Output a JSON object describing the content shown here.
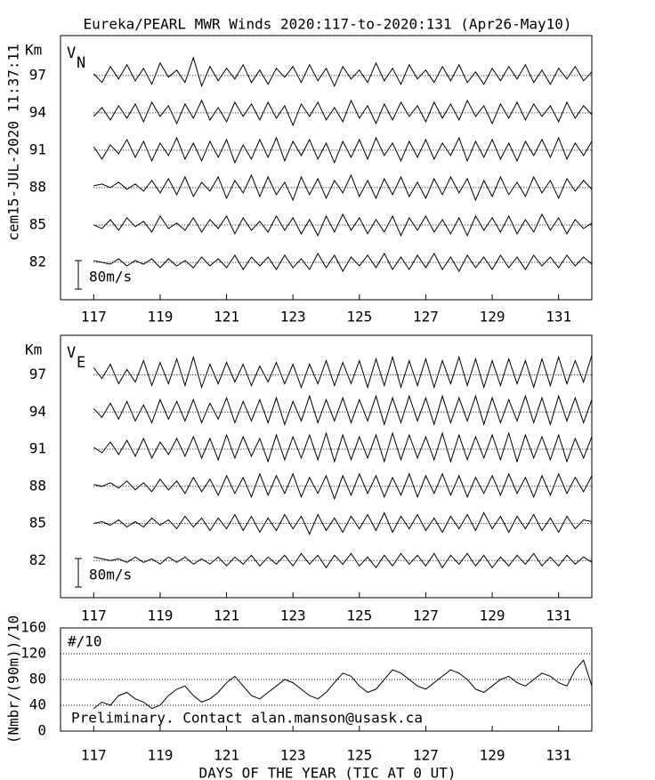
{
  "title": "Eureka/PEARL MWR Winds 2020:117-to-2020:131 (Apr26-May10)",
  "stamp": "cem15-JUL-2020 11:37:11",
  "chart_data": [
    {
      "type": "ridgeline",
      "label": {
        "main": "V",
        "sub": "N"
      },
      "y_unit": "Km",
      "x": [
        117,
        117.25,
        117.5,
        117.75,
        118,
        118.25,
        118.5,
        118.75,
        119,
        119.25,
        119.5,
        119.75,
        120,
        120.25,
        120.5,
        120.75,
        121,
        121.25,
        121.5,
        121.75,
        122,
        122.25,
        122.5,
        122.75,
        123,
        123.25,
        123.5,
        123.75,
        124,
        124.25,
        124.5,
        124.75,
        125,
        125.25,
        125.5,
        125.75,
        126,
        126.25,
        126.5,
        126.75,
        127,
        127.25,
        127.5,
        127.75,
        128,
        128.25,
        128.5,
        128.75,
        129,
        129.25,
        129.5,
        129.75,
        130,
        130.25,
        130.5,
        130.75,
        131,
        131.25,
        131.5,
        131.75,
        132
      ],
      "xlim": [
        116,
        132
      ],
      "xticks": [
        117,
        119,
        121,
        123,
        125,
        127,
        129,
        131
      ],
      "ylim": [
        79,
        100.2
      ],
      "yticks": [
        82,
        85,
        88,
        91,
        94,
        97
      ],
      "scale_bar": {
        "value": 80,
        "label": "80m/s"
      },
      "series": [
        {
          "height": 97,
          "color": "#000000",
          "values": [
            5,
            -20,
            25,
            -10,
            30,
            -15,
            20,
            -25,
            35,
            -5,
            15,
            -20,
            50,
            -30,
            25,
            -15,
            20,
            -10,
            30,
            -20,
            15,
            -25,
            20,
            -5,
            25,
            -20,
            30,
            -15,
            20,
            -30,
            25,
            -10,
            15,
            -20,
            35,
            -15,
            20,
            -25,
            30,
            -10,
            15,
            -20,
            25,
            -15,
            30,
            -20,
            10,
            -25,
            20,
            -15,
            25,
            -10,
            30,
            -20,
            15,
            -25,
            20,
            -10,
            25,
            -15,
            10
          ]
        },
        {
          "height": 94,
          "color": "#000000",
          "values": [
            -10,
            15,
            -20,
            20,
            -15,
            25,
            -25,
            30,
            -10,
            20,
            -30,
            25,
            -15,
            35,
            -20,
            15,
            -25,
            30,
            -10,
            25,
            -20,
            30,
            -15,
            20,
            -35,
            25,
            -10,
            30,
            -20,
            15,
            -25,
            35,
            -15,
            20,
            -30,
            25,
            -20,
            30,
            -10,
            20,
            -25,
            30,
            -15,
            25,
            -20,
            35,
            -10,
            20,
            -30,
            25,
            -15,
            30,
            -20,
            25,
            -10,
            20,
            -25,
            30,
            -15,
            20,
            -5
          ]
        },
        {
          "height": 91,
          "color": "#000000",
          "values": [
            10,
            -25,
            15,
            -10,
            30,
            -20,
            25,
            -30,
            20,
            -15,
            35,
            -25,
            20,
            -30,
            25,
            -20,
            30,
            -35,
            15,
            -25,
            30,
            -20,
            35,
            -30,
            25,
            -15,
            30,
            -25,
            20,
            -35,
            25,
            -20,
            30,
            -25,
            35,
            -15,
            20,
            -30,
            25,
            -20,
            30,
            -25,
            20,
            -15,
            35,
            -30,
            25,
            -20,
            30,
            -25,
            20,
            -30,
            25,
            -15,
            30,
            -20,
            35,
            -25,
            20,
            -15,
            25
          ]
        },
        {
          "height": 88,
          "color": "#000000",
          "values": [
            5,
            10,
            0,
            15,
            -5,
            10,
            -10,
            20,
            -15,
            25,
            -20,
            30,
            -25,
            15,
            -10,
            30,
            -30,
            20,
            -15,
            35,
            -25,
            30,
            -20,
            15,
            -35,
            30,
            -20,
            25,
            -30,
            20,
            -15,
            35,
            -25,
            20,
            -30,
            25,
            -20,
            30,
            -25,
            15,
            -30,
            25,
            -20,
            30,
            -15,
            25,
            -35,
            20,
            -25,
            30,
            -20,
            15,
            -25,
            30,
            -15,
            20,
            -30,
            25,
            -10,
            20,
            -5
          ]
        },
        {
          "height": 85,
          "color": "#000000",
          "values": [
            0,
            -10,
            15,
            -15,
            20,
            -5,
            10,
            -20,
            25,
            -10,
            5,
            -15,
            20,
            -20,
            15,
            -10,
            25,
            -25,
            20,
            -15,
            10,
            -20,
            25,
            -15,
            20,
            -25,
            15,
            -30,
            25,
            -20,
            30,
            -15,
            20,
            -25,
            15,
            -20,
            25,
            -30,
            20,
            -15,
            25,
            -20,
            15,
            -25,
            20,
            -30,
            25,
            -15,
            20,
            -20,
            25,
            -25,
            15,
            -20,
            30,
            -15,
            20,
            -25,
            15,
            -10,
            5
          ]
        },
        {
          "height": 82,
          "color": "#000000",
          "values": [
            5,
            0,
            -5,
            10,
            -10,
            5,
            -5,
            10,
            -15,
            10,
            -10,
            5,
            -15,
            15,
            -10,
            10,
            -15,
            20,
            -20,
            15,
            -10,
            15,
            -20,
            20,
            -15,
            10,
            -20,
            25,
            -15,
            20,
            -25,
            15,
            -10,
            20,
            -15,
            25,
            -20,
            15,
            -20,
            20,
            -15,
            25,
            -20,
            15,
            -25,
            20,
            -15,
            15,
            -20,
            20,
            -15,
            15,
            -20,
            20,
            -10,
            15,
            -15,
            20,
            -10,
            15,
            -5
          ]
        }
      ]
    },
    {
      "type": "ridgeline",
      "label": {
        "main": "V",
        "sub": "E"
      },
      "y_unit": "Km",
      "x": [
        117,
        117.25,
        117.5,
        117.75,
        118,
        118.25,
        118.5,
        118.75,
        119,
        119.25,
        119.5,
        119.75,
        120,
        120.25,
        120.5,
        120.75,
        121,
        121.25,
        121.5,
        121.75,
        122,
        122.25,
        122.5,
        122.75,
        123,
        123.25,
        123.5,
        123.75,
        124,
        124.25,
        124.5,
        124.75,
        125,
        125.25,
        125.5,
        125.75,
        126,
        126.25,
        126.5,
        126.75,
        127,
        127.25,
        127.5,
        127.75,
        128,
        128.25,
        128.5,
        128.75,
        129,
        129.25,
        129.5,
        129.75,
        130,
        130.25,
        130.5,
        130.75,
        131,
        131.25,
        131.5,
        131.75,
        132
      ],
      "xlim": [
        116,
        132
      ],
      "xticks": [
        117,
        119,
        121,
        123,
        125,
        127,
        129,
        131
      ],
      "ylim": [
        79,
        100.2
      ],
      "yticks": [
        82,
        85,
        88,
        91,
        94,
        97
      ],
      "scale_bar": {
        "value": 80,
        "label": "80m/s"
      },
      "series": [
        {
          "height": 97,
          "color": "#000000",
          "values": [
            20,
            -10,
            30,
            -25,
            15,
            -20,
            40,
            -30,
            35,
            -25,
            45,
            -30,
            50,
            -35,
            30,
            -25,
            35,
            -20,
            30,
            -30,
            25,
            -20,
            35,
            -25,
            30,
            -35,
            30,
            -25,
            40,
            -30,
            35,
            -25,
            40,
            -35,
            45,
            -30,
            50,
            -35,
            40,
            -30,
            45,
            -35,
            40,
            -25,
            50,
            -30,
            45,
            -35,
            40,
            -30,
            45,
            -25,
            40,
            -35,
            45,
            -30,
            50,
            -25,
            40,
            -20,
            55
          ]
        },
        {
          "height": 94,
          "color": "#000000",
          "values": [
            10,
            -15,
            25,
            -20,
            30,
            -25,
            20,
            -30,
            35,
            -20,
            30,
            -25,
            35,
            -30,
            25,
            -20,
            40,
            -30,
            30,
            -25,
            35,
            -30,
            40,
            -35,
            30,
            -25,
            45,
            -30,
            35,
            -25,
            40,
            -30,
            35,
            -25,
            45,
            -35,
            40,
            -30,
            45,
            -25,
            40,
            -35,
            45,
            -30,
            40,
            -25,
            45,
            -35,
            40,
            -30,
            35,
            -25,
            45,
            -30,
            40,
            -35,
            45,
            -25,
            40,
            -30,
            35
          ]
        },
        {
          "height": 91,
          "color": "#000000",
          "values": [
            5,
            -10,
            20,
            -15,
            25,
            -20,
            30,
            -25,
            20,
            -15,
            30,
            -20,
            35,
            -25,
            30,
            -30,
            40,
            -25,
            35,
            -20,
            30,
            -35,
            40,
            -30,
            35,
            -25,
            40,
            -30,
            45,
            -35,
            40,
            -30,
            35,
            -25,
            40,
            -35,
            45,
            -30,
            40,
            -25,
            35,
            -30,
            45,
            -35,
            40,
            -30,
            35,
            -25,
            40,
            -30,
            45,
            -35,
            40,
            -25,
            35,
            -30,
            40,
            -35,
            30,
            -25,
            35
          ]
        },
        {
          "height": 88,
          "color": "#000000",
          "values": [
            5,
            0,
            10,
            -5,
            15,
            -10,
            10,
            -15,
            20,
            -10,
            15,
            -20,
            25,
            -15,
            20,
            -25,
            30,
            -20,
            25,
            -30,
            35,
            -25,
            30,
            -20,
            35,
            -30,
            25,
            -20,
            30,
            -35,
            30,
            -25,
            35,
            -20,
            30,
            -30,
            25,
            -25,
            35,
            -30,
            30,
            -20,
            35,
            -25,
            30,
            -30,
            25,
            -20,
            30,
            -25,
            35,
            -20,
            25,
            -30,
            30,
            -25,
            35,
            -20,
            25,
            -15,
            30
          ]
        },
        {
          "height": 85,
          "color": "#000000",
          "values": [
            0,
            5,
            -5,
            10,
            -10,
            5,
            -10,
            15,
            -5,
            10,
            -15,
            20,
            -10,
            15,
            -20,
            15,
            -15,
            25,
            -20,
            20,
            -25,
            15,
            -20,
            25,
            -15,
            20,
            -30,
            25,
            -20,
            15,
            -25,
            20,
            -15,
            25,
            -20,
            30,
            -25,
            20,
            -15,
            25,
            -20,
            15,
            -25,
            20,
            -15,
            25,
            -20,
            30,
            -15,
            20,
            -25,
            20,
            -15,
            25,
            -20,
            15,
            -25,
            20,
            -15,
            10,
            5
          ]
        },
        {
          "height": 82,
          "color": "#000000",
          "values": [
            10,
            5,
            0,
            5,
            -5,
            10,
            -5,
            5,
            -10,
            10,
            -5,
            10,
            -10,
            5,
            -10,
            10,
            -15,
            10,
            -10,
            15,
            -15,
            10,
            -10,
            15,
            -15,
            20,
            -10,
            15,
            -20,
            15,
            -10,
            20,
            -15,
            10,
            -20,
            15,
            -15,
            20,
            -10,
            15,
            -15,
            20,
            -20,
            15,
            -10,
            20,
            -15,
            15,
            -20,
            10,
            -15,
            15,
            -10,
            20,
            -15,
            10,
            -15,
            15,
            -10,
            10,
            -5
          ]
        }
      ]
    },
    {
      "type": "line",
      "title": "#/10",
      "ylabel": "(Nmbr/(90m))/10",
      "xlabel": "DAYS OF THE YEAR (TIC AT 0 UT)",
      "note": "Preliminary. Contact alan.manson@usask.ca",
      "x": [
        117,
        117.25,
        117.5,
        117.75,
        118,
        118.25,
        118.5,
        118.75,
        119,
        119.25,
        119.5,
        119.75,
        120,
        120.25,
        120.5,
        120.75,
        121,
        121.25,
        121.5,
        121.75,
        122,
        122.25,
        122.5,
        122.75,
        123,
        123.25,
        123.5,
        123.75,
        124,
        124.25,
        124.5,
        124.75,
        125,
        125.25,
        125.5,
        125.75,
        126,
        126.25,
        126.5,
        126.75,
        127,
        127.25,
        127.5,
        127.75,
        128,
        128.25,
        128.5,
        128.75,
        129,
        129.25,
        129.5,
        129.75,
        130,
        130.25,
        130.5,
        130.75,
        131,
        131.25,
        131.5,
        131.75,
        132
      ],
      "xlim": [
        116,
        132
      ],
      "xticks": [
        117,
        119,
        121,
        123,
        125,
        127,
        129,
        131
      ],
      "ylim": [
        0,
        160
      ],
      "yticks": [
        0,
        40,
        80,
        120,
        160
      ],
      "grid": true,
      "series": [
        {
          "color": "#000000",
          "values": [
            35,
            45,
            40,
            55,
            60,
            50,
            45,
            35,
            40,
            55,
            65,
            70,
            55,
            45,
            50,
            60,
            75,
            85,
            70,
            55,
            50,
            60,
            70,
            80,
            75,
            65,
            55,
            50,
            60,
            75,
            90,
            85,
            70,
            60,
            65,
            80,
            95,
            90,
            80,
            70,
            65,
            75,
            85,
            95,
            90,
            80,
            65,
            60,
            70,
            80,
            85,
            75,
            70,
            80,
            90,
            85,
            75,
            70,
            95,
            110,
            70
          ]
        }
      ]
    }
  ]
}
